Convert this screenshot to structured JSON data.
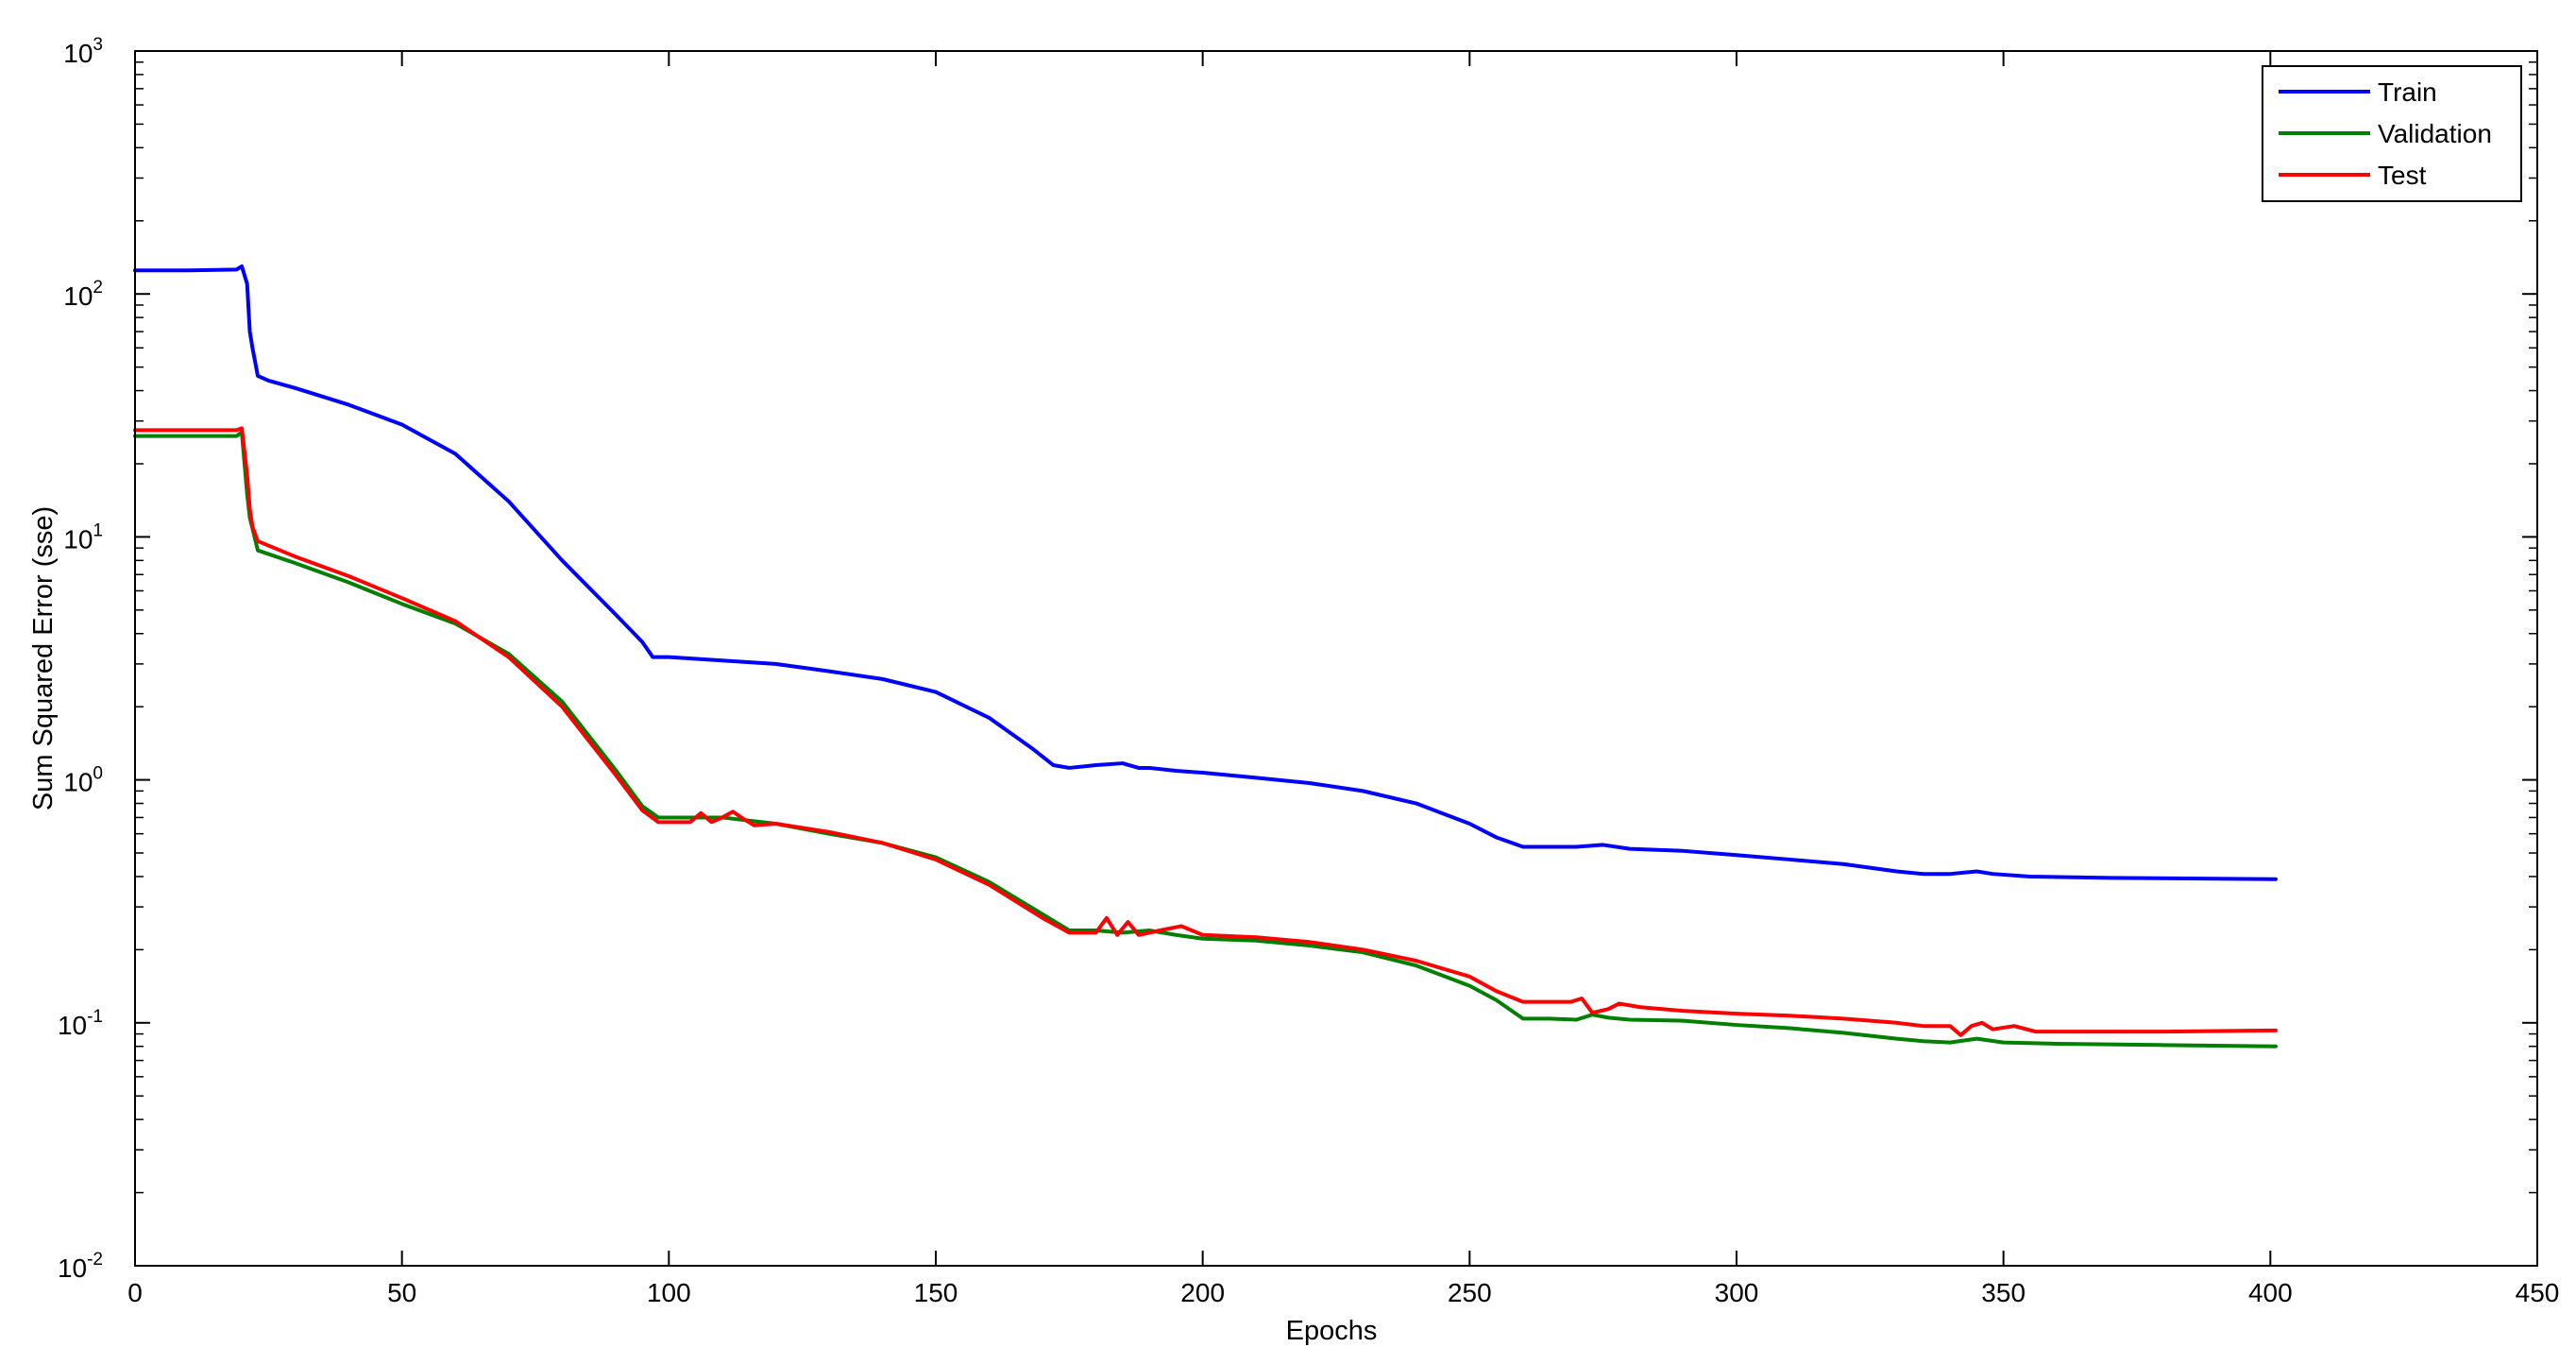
{
  "chart_data": {
    "type": "line",
    "title": "",
    "xlabel": "Epochs",
    "ylabel": "Sum Squared Error (sse)",
    "xlim": [
      0,
      450
    ],
    "ylim": [
      0.01,
      1000
    ],
    "yscale": "log",
    "xticks": [
      0,
      50,
      100,
      150,
      200,
      250,
      300,
      350,
      400,
      450
    ],
    "yticks": [
      {
        "value": 0.01,
        "base": "10",
        "exp": "-2"
      },
      {
        "value": 0.1,
        "base": "10",
        "exp": "-1"
      },
      {
        "value": 1,
        "base": "10",
        "exp": "0"
      },
      {
        "value": 10,
        "base": "10",
        "exp": "1"
      },
      {
        "value": 100,
        "base": "10",
        "exp": "2"
      },
      {
        "value": 1000,
        "base": "10",
        "exp": "3"
      }
    ],
    "grid": false,
    "legend_position": "top-right",
    "series": [
      {
        "name": "Train",
        "color": "#0000ff",
        "points": [
          [
            0,
            125
          ],
          [
            10,
            125
          ],
          [
            19,
            126
          ],
          [
            20,
            130
          ],
          [
            21,
            110
          ],
          [
            21.5,
            70
          ],
          [
            22,
            60
          ],
          [
            23,
            46
          ],
          [
            25,
            44
          ],
          [
            30,
            41
          ],
          [
            40,
            35
          ],
          [
            50,
            29
          ],
          [
            60,
            22
          ],
          [
            70,
            14
          ],
          [
            80,
            8
          ],
          [
            90,
            4.8
          ],
          [
            95,
            3.7
          ],
          [
            97,
            3.2
          ],
          [
            100,
            3.2
          ],
          [
            110,
            3.1
          ],
          [
            120,
            3.0
          ],
          [
            130,
            2.8
          ],
          [
            140,
            2.6
          ],
          [
            150,
            2.3
          ],
          [
            160,
            1.8
          ],
          [
            168,
            1.35
          ],
          [
            172,
            1.15
          ],
          [
            175,
            1.12
          ],
          [
            180,
            1.15
          ],
          [
            185,
            1.17
          ],
          [
            188,
            1.12
          ],
          [
            190,
            1.12
          ],
          [
            195,
            1.09
          ],
          [
            200,
            1.07
          ],
          [
            210,
            1.02
          ],
          [
            220,
            0.97
          ],
          [
            230,
            0.9
          ],
          [
            240,
            0.8
          ],
          [
            250,
            0.66
          ],
          [
            255,
            0.58
          ],
          [
            260,
            0.53
          ],
          [
            265,
            0.53
          ],
          [
            270,
            0.53
          ],
          [
            275,
            0.54
          ],
          [
            280,
            0.52
          ],
          [
            290,
            0.51
          ],
          [
            300,
            0.49
          ],
          [
            310,
            0.47
          ],
          [
            320,
            0.45
          ],
          [
            330,
            0.42
          ],
          [
            335,
            0.41
          ],
          [
            340,
            0.41
          ],
          [
            345,
            0.42
          ],
          [
            348,
            0.41
          ],
          [
            355,
            0.4
          ],
          [
            370,
            0.395
          ],
          [
            390,
            0.392
          ],
          [
            401,
            0.39
          ]
        ]
      },
      {
        "name": "Validation",
        "color": "#008000",
        "points": [
          [
            0,
            26
          ],
          [
            10,
            26
          ],
          [
            19,
            26
          ],
          [
            20,
            27
          ],
          [
            21,
            15
          ],
          [
            21.5,
            12
          ],
          [
            23,
            8.8
          ],
          [
            30,
            7.8
          ],
          [
            40,
            6.5
          ],
          [
            50,
            5.3
          ],
          [
            60,
            4.4
          ],
          [
            70,
            3.3
          ],
          [
            80,
            2.1
          ],
          [
            90,
            1.1
          ],
          [
            95,
            0.78
          ],
          [
            98,
            0.7
          ],
          [
            100,
            0.7
          ],
          [
            110,
            0.7
          ],
          [
            115,
            0.68
          ],
          [
            120,
            0.66
          ],
          [
            130,
            0.6
          ],
          [
            140,
            0.55
          ],
          [
            150,
            0.48
          ],
          [
            160,
            0.38
          ],
          [
            170,
            0.28
          ],
          [
            175,
            0.24
          ],
          [
            180,
            0.24
          ],
          [
            185,
            0.235
          ],
          [
            190,
            0.24
          ],
          [
            195,
            0.23
          ],
          [
            200,
            0.222
          ],
          [
            210,
            0.218
          ],
          [
            220,
            0.208
          ],
          [
            230,
            0.195
          ],
          [
            240,
            0.172
          ],
          [
            250,
            0.142
          ],
          [
            255,
            0.124
          ],
          [
            260,
            0.104
          ],
          [
            265,
            0.104
          ],
          [
            270,
            0.103
          ],
          [
            273,
            0.108
          ],
          [
            276,
            0.105
          ],
          [
            280,
            0.103
          ],
          [
            290,
            0.102
          ],
          [
            300,
            0.098
          ],
          [
            310,
            0.095
          ],
          [
            320,
            0.091
          ],
          [
            330,
            0.086
          ],
          [
            335,
            0.084
          ],
          [
            340,
            0.083
          ],
          [
            345,
            0.086
          ],
          [
            350,
            0.083
          ],
          [
            360,
            0.082
          ],
          [
            380,
            0.081
          ],
          [
            401,
            0.08
          ]
        ]
      },
      {
        "name": "Test",
        "color": "#ff0000",
        "points": [
          [
            0,
            27.5
          ],
          [
            10,
            27.5
          ],
          [
            19,
            27.5
          ],
          [
            20,
            28
          ],
          [
            21,
            18
          ],
          [
            21.5,
            13
          ],
          [
            22,
            11
          ],
          [
            23,
            9.6
          ],
          [
            30,
            8.3
          ],
          [
            40,
            6.9
          ],
          [
            50,
            5.6
          ],
          [
            60,
            4.5
          ],
          [
            70,
            3.2
          ],
          [
            80,
            2.0
          ],
          [
            90,
            1.05
          ],
          [
            95,
            0.75
          ],
          [
            98,
            0.67
          ],
          [
            100,
            0.67
          ],
          [
            104,
            0.67
          ],
          [
            106,
            0.73
          ],
          [
            108,
            0.67
          ],
          [
            110,
            0.7
          ],
          [
            112,
            0.74
          ],
          [
            114,
            0.69
          ],
          [
            116,
            0.65
          ],
          [
            120,
            0.66
          ],
          [
            130,
            0.61
          ],
          [
            140,
            0.55
          ],
          [
            150,
            0.47
          ],
          [
            160,
            0.37
          ],
          [
            170,
            0.27
          ],
          [
            175,
            0.235
          ],
          [
            180,
            0.235
          ],
          [
            182,
            0.27
          ],
          [
            184,
            0.23
          ],
          [
            186,
            0.26
          ],
          [
            188,
            0.23
          ],
          [
            192,
            0.24
          ],
          [
            196,
            0.25
          ],
          [
            200,
            0.23
          ],
          [
            210,
            0.225
          ],
          [
            220,
            0.215
          ],
          [
            230,
            0.2
          ],
          [
            240,
            0.18
          ],
          [
            250,
            0.155
          ],
          [
            255,
            0.135
          ],
          [
            260,
            0.122
          ],
          [
            265,
            0.122
          ],
          [
            269,
            0.122
          ],
          [
            271,
            0.126
          ],
          [
            273,
            0.11
          ],
          [
            276,
            0.114
          ],
          [
            278,
            0.12
          ],
          [
            282,
            0.116
          ],
          [
            290,
            0.112
          ],
          [
            300,
            0.109
          ],
          [
            310,
            0.107
          ],
          [
            320,
            0.104
          ],
          [
            330,
            0.1
          ],
          [
            335,
            0.097
          ],
          [
            340,
            0.097
          ],
          [
            342,
            0.089
          ],
          [
            344,
            0.097
          ],
          [
            346,
            0.1
          ],
          [
            348,
            0.094
          ],
          [
            352,
            0.097
          ],
          [
            356,
            0.092
          ],
          [
            365,
            0.092
          ],
          [
            380,
            0.092
          ],
          [
            401,
            0.093
          ]
        ]
      }
    ]
  }
}
